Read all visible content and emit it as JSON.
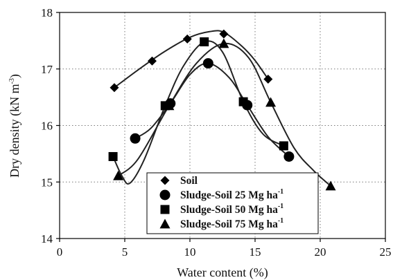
{
  "chart_data": {
    "type": "scatter",
    "xlabel": "Water content (%)",
    "ylabel_main": "Dry density (kN m",
    "ylabel_sup": "-3",
    "ylabel_close": ")",
    "xlim": [
      0,
      25
    ],
    "ylim": [
      14,
      18
    ],
    "xticks": [
      "0",
      "5",
      "10",
      "15",
      "20",
      "25"
    ],
    "yticks": [
      "14",
      "15",
      "16",
      "17",
      "18"
    ],
    "grid": true,
    "legend_position": "bottom-center",
    "series": [
      {
        "name": "Soil",
        "unit": "",
        "unit_sup": "",
        "marker": "diamond",
        "x": [
          4.2,
          7.1,
          9.8,
          12.6,
          16.0
        ],
        "y": [
          16.67,
          17.14,
          17.53,
          17.62,
          16.82
        ],
        "fit_x": [
          4.2,
          6,
          8,
          10,
          11.5,
          12.6,
          14,
          15,
          16
        ],
        "fit_y": [
          16.67,
          16.98,
          17.3,
          17.56,
          17.66,
          17.65,
          17.4,
          17.15,
          16.82
        ]
      },
      {
        "name": "Sludge-Soil 25 Mg ",
        "unit": "ha",
        "unit_sup": "-1",
        "marker": "circle",
        "x": [
          5.8,
          8.5,
          11.4,
          14.4,
          17.6
        ],
        "y": [
          15.77,
          16.39,
          17.1,
          16.36,
          15.45
        ],
        "fit_x": [
          5.8,
          7,
          8.5,
          10,
          11.4,
          13,
          14.4,
          16,
          17.6
        ],
        "fit_y": [
          15.77,
          15.95,
          16.39,
          16.9,
          17.1,
          16.85,
          16.36,
          15.8,
          15.45
        ]
      },
      {
        "name": "Sludge-Soil 50 Mg ",
        "unit": "ha",
        "unit_sup": "-1",
        "marker": "square",
        "x": [
          4.1,
          8.1,
          11.1,
          14.1,
          17.2
        ],
        "y": [
          15.45,
          16.35,
          17.48,
          16.42,
          15.64
        ],
        "fit_x": [
          4.1,
          4.8,
          5.4,
          6.5,
          8.1,
          9.5,
          11.1,
          12.5,
          14.1,
          15.6,
          17.2
        ],
        "fit_y": [
          15.45,
          15.1,
          14.98,
          15.4,
          16.35,
          17.05,
          17.48,
          17.3,
          16.42,
          15.85,
          15.64
        ]
      },
      {
        "name": "Sludge-Soil 75 Mg ",
        "unit": "ha",
        "unit_sup": "-1",
        "marker": "triangle",
        "x": [
          4.5,
          8.4,
          12.6,
          16.2,
          20.8
        ],
        "y": [
          15.11,
          16.35,
          17.45,
          16.41,
          14.93
        ],
        "fit_x": [
          4.5,
          6,
          8.4,
          10.5,
          12.6,
          14.5,
          16.2,
          18,
          19.5,
          20.8
        ],
        "fit_y": [
          15.11,
          15.4,
          16.35,
          17.1,
          17.45,
          17.2,
          16.41,
          15.6,
          15.2,
          14.93
        ]
      }
    ]
  }
}
